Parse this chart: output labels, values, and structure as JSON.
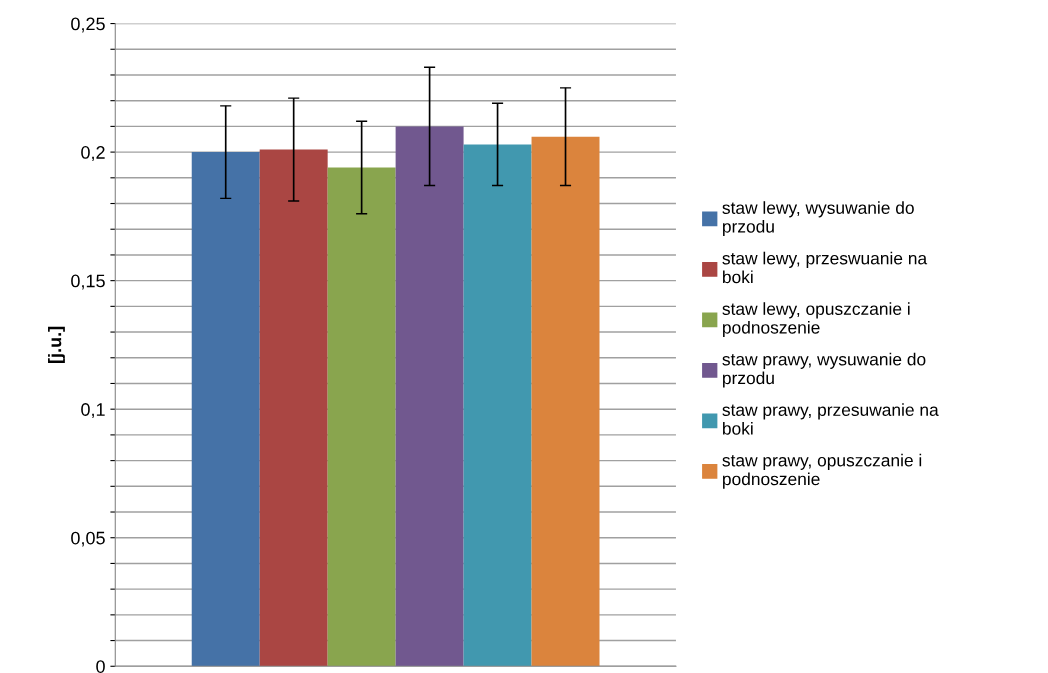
{
  "chart_data": {
    "type": "bar",
    "ylabel": "[j.u.]",
    "categories": [
      null
    ],
    "series": [
      {
        "name": "staw lewy, wysuwanie do przodu",
        "color": "#4572a7",
        "values": [
          0.2
        ],
        "errors": [
          0.018
        ]
      },
      {
        "name": "staw lewy, przeswuanie na boki",
        "color": "#aa4643",
        "values": [
          0.201
        ],
        "errors": [
          0.02
        ]
      },
      {
        "name": "staw lewy, opuszczanie i podnoszenie",
        "color": "#89a54e",
        "values": [
          0.194
        ],
        "errors": [
          0.018
        ]
      },
      {
        "name": "staw prawy, wysuwanie do przodu",
        "color": "#71588f",
        "values": [
          0.21
        ],
        "errors": [
          0.023
        ]
      },
      {
        "name": "staw prawy, przesuwanie na boki",
        "color": "#4198af",
        "values": [
          0.203
        ],
        "errors": [
          0.016
        ]
      },
      {
        "name": "staw prawy, opuszczanie i podnoszenie",
        "color": "#db843d",
        "values": [
          0.206
        ],
        "errors": [
          0.019
        ]
      }
    ],
    "ylim": [
      0,
      0.25
    ],
    "yticks": [
      {
        "value": 0,
        "label": "0"
      },
      {
        "value": 0.01,
        "label": null
      },
      {
        "value": 0.02,
        "label": null
      },
      {
        "value": 0.03,
        "label": null
      },
      {
        "value": 0.04,
        "label": null
      },
      {
        "value": 0.05,
        "label": "0,05"
      },
      {
        "value": 0.06,
        "label": null
      },
      {
        "value": 0.07,
        "label": null
      },
      {
        "value": 0.08,
        "label": null
      },
      {
        "value": 0.09,
        "label": null
      },
      {
        "value": 0.1,
        "label": "0,1"
      },
      {
        "value": 0.11,
        "label": null
      },
      {
        "value": 0.12,
        "label": null
      },
      {
        "value": 0.13,
        "label": null
      },
      {
        "value": 0.14,
        "label": null
      },
      {
        "value": 0.15,
        "label": "0,15"
      },
      {
        "value": 0.16,
        "label": null
      },
      {
        "value": 0.17,
        "label": null
      },
      {
        "value": 0.18,
        "label": null
      },
      {
        "value": 0.19,
        "label": null
      },
      {
        "value": 0.2,
        "label": "0,2"
      },
      {
        "value": 0.21,
        "label": null
      },
      {
        "value": 0.22,
        "label": null
      },
      {
        "value": 0.23,
        "label": null
      },
      {
        "value": 0.24,
        "label": null
      },
      {
        "value": 0.25,
        "label": "0,25"
      }
    ],
    "grid": "y",
    "legend": "right"
  }
}
